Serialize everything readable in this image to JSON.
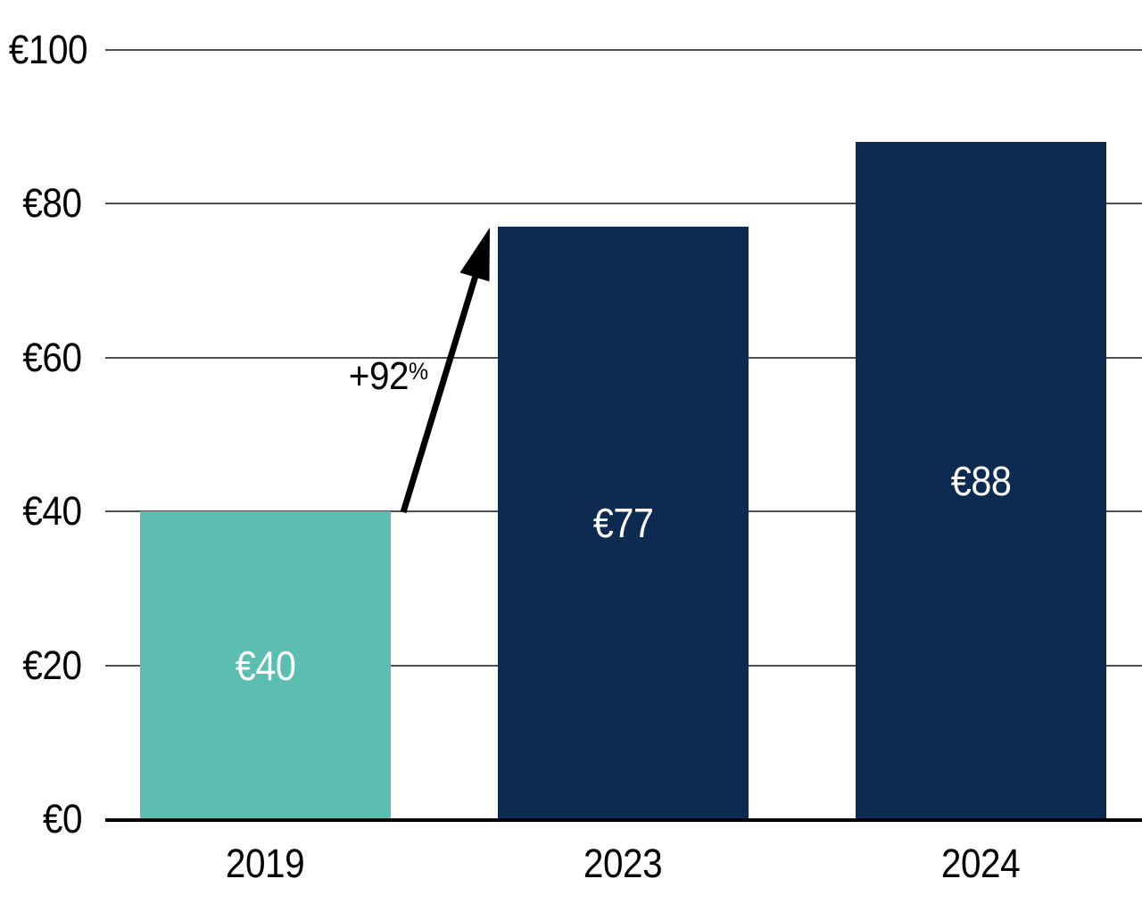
{
  "chart_data": {
    "type": "bar",
    "title": "",
    "xlabel": "",
    "ylabel": "",
    "currency_symbol": "€",
    "categories": [
      "2019",
      "2023",
      "2024"
    ],
    "values": [
      40,
      77,
      88
    ],
    "bars": [
      {
        "category": "2019",
        "value": 40,
        "label": "€40",
        "color": "#5CBDB1"
      },
      {
        "category": "2023",
        "value": 77,
        "label": "€77",
        "color": "#0D2A51"
      },
      {
        "category": "2024",
        "value": 88,
        "label": "€88",
        "color": "#0D2A51"
      }
    ],
    "ylim": [
      0,
      100
    ],
    "y_ticks": [
      {
        "value": 0,
        "label": "€0"
      },
      {
        "value": 20,
        "label": "€20"
      },
      {
        "value": 40,
        "label": "€40"
      },
      {
        "value": 60,
        "label": "€60"
      },
      {
        "value": 80,
        "label": "€80"
      },
      {
        "value": 100,
        "label": "€100"
      }
    ],
    "grid": true,
    "legend": null,
    "annotation": {
      "text": "+92%",
      "value_text": "+92",
      "unit": "%",
      "from_category": "2019",
      "to_category": "2023"
    }
  },
  "colors": {
    "background": "#FFFFFF",
    "bar_teal": "#5CBDB1",
    "bar_navy": "#0D2A51",
    "gridline": "#4F4F4F",
    "axis_line": "#000000",
    "tick_text": "#000000",
    "bar_label_text": "#FFFFFF",
    "arrow": "#000000"
  }
}
